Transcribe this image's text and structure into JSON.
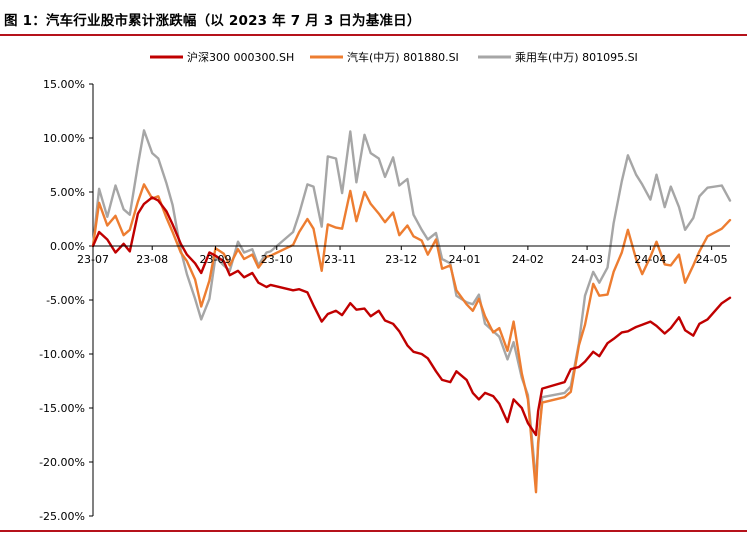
{
  "page": {
    "title": "图 1：汽车行业股市累计涨跌幅（以 2023 年 7 月 3 日为基准日）"
  },
  "colors": {
    "rule": "#b5121b",
    "axis": "#000000"
  },
  "chart_data": {
    "type": "line",
    "title": "图 1：汽车行业股市累计涨跌幅（以 2023 年 7 月 3 日为基准日）",
    "xlabel": "",
    "ylabel": "",
    "x_tick_labels": [
      "23-07",
      "23-08",
      "23-09",
      "23-10",
      "23-11",
      "23-12",
      "24-01",
      "24-02",
      "24-03",
      "24-04",
      "24-05"
    ],
    "y_tick_labels": [
      "15.00%",
      "10.00%",
      "5.00%",
      "0.00%",
      "-5.00%",
      "-10.00%",
      "-15.00%",
      "-20.00%",
      "-25.00%"
    ],
    "y_ticks": [
      15,
      10,
      5,
      0,
      -5,
      -10,
      -15,
      -20,
      -25
    ],
    "ylim": [
      -25,
      15
    ],
    "xlim": [
      "2023-07-03",
      "2024-05-10"
    ],
    "grid": false,
    "legend_position": "top",
    "series": [
      {
        "name": "沪深300 000300.SH",
        "color": "#c00000",
        "points": [
          [
            "2023-07-03",
            0.0
          ],
          [
            "2023-07-06",
            1.3
          ],
          [
            "2023-07-10",
            0.6
          ],
          [
            "2023-07-14",
            -0.6
          ],
          [
            "2023-07-18",
            0.2
          ],
          [
            "2023-07-21",
            -0.5
          ],
          [
            "2023-07-25",
            3.0
          ],
          [
            "2023-07-28",
            3.9
          ],
          [
            "2023-08-01",
            4.5
          ],
          [
            "2023-08-04",
            4.2
          ],
          [
            "2023-08-08",
            3.2
          ],
          [
            "2023-08-11",
            2.0
          ],
          [
            "2023-08-15",
            0.2
          ],
          [
            "2023-08-18",
            -0.8
          ],
          [
            "2023-08-22",
            -1.6
          ],
          [
            "2023-08-25",
            -2.5
          ],
          [
            "2023-08-29",
            -0.6
          ],
          [
            "2023-09-01",
            -0.9
          ],
          [
            "2023-09-05",
            -1.4
          ],
          [
            "2023-09-08",
            -2.7
          ],
          [
            "2023-09-12",
            -2.3
          ],
          [
            "2023-09-15",
            -2.9
          ],
          [
            "2023-09-19",
            -2.5
          ],
          [
            "2023-09-22",
            -3.4
          ],
          [
            "2023-09-26",
            -3.8
          ],
          [
            "2023-09-28",
            -3.6
          ],
          [
            "2023-10-09",
            -4.1
          ],
          [
            "2023-10-12",
            -4.0
          ],
          [
            "2023-10-16",
            -4.3
          ],
          [
            "2023-10-19",
            -5.5
          ],
          [
            "2023-10-23",
            -7.0
          ],
          [
            "2023-10-26",
            -6.3
          ],
          [
            "2023-10-30",
            -6.0
          ],
          [
            "2023-11-02",
            -6.4
          ],
          [
            "2023-11-06",
            -5.3
          ],
          [
            "2023-11-09",
            -5.9
          ],
          [
            "2023-11-13",
            -5.8
          ],
          [
            "2023-11-16",
            -6.5
          ],
          [
            "2023-11-20",
            -6.0
          ],
          [
            "2023-11-23",
            -6.9
          ],
          [
            "2023-11-27",
            -7.2
          ],
          [
            "2023-11-30",
            -7.9
          ],
          [
            "2023-12-04",
            -9.2
          ],
          [
            "2023-12-07",
            -9.8
          ],
          [
            "2023-12-11",
            -10.0
          ],
          [
            "2023-12-14",
            -10.4
          ],
          [
            "2023-12-18",
            -11.6
          ],
          [
            "2023-12-21",
            -12.4
          ],
          [
            "2023-12-25",
            -12.6
          ],
          [
            "2023-12-28",
            -11.6
          ],
          [
            "2024-01-02",
            -12.4
          ],
          [
            "2024-01-05",
            -13.6
          ],
          [
            "2024-01-08",
            -14.2
          ],
          [
            "2024-01-11",
            -13.6
          ],
          [
            "2024-01-15",
            -13.9
          ],
          [
            "2024-01-18",
            -14.6
          ],
          [
            "2024-01-22",
            -16.3
          ],
          [
            "2024-01-25",
            -14.2
          ],
          [
            "2024-01-29",
            -15.0
          ],
          [
            "2024-02-01",
            -16.4
          ],
          [
            "2024-02-05",
            -17.5
          ],
          [
            "2024-02-06",
            -15.3
          ],
          [
            "2024-02-08",
            -13.2
          ],
          [
            "2024-02-19",
            -12.6
          ],
          [
            "2024-02-22",
            -11.4
          ],
          [
            "2024-02-26",
            -11.2
          ],
          [
            "2024-02-29",
            -10.7
          ],
          [
            "2024-03-04",
            -9.8
          ],
          [
            "2024-03-07",
            -10.2
          ],
          [
            "2024-03-11",
            -9.0
          ],
          [
            "2024-03-14",
            -8.6
          ],
          [
            "2024-03-18",
            -8.0
          ],
          [
            "2024-03-21",
            -7.9
          ],
          [
            "2024-03-25",
            -7.5
          ],
          [
            "2024-03-28",
            -7.3
          ],
          [
            "2024-04-01",
            -7.0
          ],
          [
            "2024-04-04",
            -7.4
          ],
          [
            "2024-04-08",
            -8.1
          ],
          [
            "2024-04-11",
            -7.6
          ],
          [
            "2024-04-15",
            -6.6
          ],
          [
            "2024-04-18",
            -7.8
          ],
          [
            "2024-04-22",
            -8.3
          ],
          [
            "2024-04-25",
            -7.2
          ],
          [
            "2024-04-29",
            -6.8
          ],
          [
            "2024-05-06",
            -5.3
          ],
          [
            "2024-05-10",
            -4.8
          ]
        ]
      },
      {
        "name": "汽车(中万) 801880.SI",
        "color": "#ed7d31",
        "points": [
          [
            "2023-07-03",
            0.0
          ],
          [
            "2023-07-06",
            4.0
          ],
          [
            "2023-07-10",
            1.9
          ],
          [
            "2023-07-14",
            2.8
          ],
          [
            "2023-07-18",
            1.0
          ],
          [
            "2023-07-21",
            1.5
          ],
          [
            "2023-07-25",
            4.1
          ],
          [
            "2023-07-28",
            5.7
          ],
          [
            "2023-08-01",
            4.4
          ],
          [
            "2023-08-04",
            4.6
          ],
          [
            "2023-08-08",
            2.6
          ],
          [
            "2023-08-11",
            1.3
          ],
          [
            "2023-08-15",
            -0.6
          ],
          [
            "2023-08-18",
            -1.4
          ],
          [
            "2023-08-22",
            -3.1
          ],
          [
            "2023-08-25",
            -5.6
          ],
          [
            "2023-08-29",
            -3.2
          ],
          [
            "2023-09-01",
            -0.2
          ],
          [
            "2023-09-05",
            -0.7
          ],
          [
            "2023-09-08",
            -1.8
          ],
          [
            "2023-09-12",
            -0.3
          ],
          [
            "2023-09-15",
            -1.2
          ],
          [
            "2023-09-19",
            -0.8
          ],
          [
            "2023-09-22",
            -2.0
          ],
          [
            "2023-09-26",
            -1.0
          ],
          [
            "2023-09-28",
            -0.9
          ],
          [
            "2023-10-09",
            0.1
          ],
          [
            "2023-10-12",
            1.3
          ],
          [
            "2023-10-16",
            2.5
          ],
          [
            "2023-10-19",
            1.6
          ],
          [
            "2023-10-23",
            -2.3
          ],
          [
            "2023-10-26",
            2.0
          ],
          [
            "2023-10-30",
            1.7
          ],
          [
            "2023-11-02",
            1.6
          ],
          [
            "2023-11-06",
            5.1
          ],
          [
            "2023-11-09",
            2.3
          ],
          [
            "2023-11-13",
            5.0
          ],
          [
            "2023-11-16",
            3.9
          ],
          [
            "2023-11-20",
            3.0
          ],
          [
            "2023-11-23",
            2.2
          ],
          [
            "2023-11-27",
            3.1
          ],
          [
            "2023-11-30",
            1.0
          ],
          [
            "2023-12-04",
            1.9
          ],
          [
            "2023-12-07",
            0.9
          ],
          [
            "2023-12-11",
            0.5
          ],
          [
            "2023-12-14",
            -0.8
          ],
          [
            "2023-12-18",
            0.6
          ],
          [
            "2023-12-21",
            -2.1
          ],
          [
            "2023-12-25",
            -1.8
          ],
          [
            "2023-12-28",
            -4.1
          ],
          [
            "2024-01-02",
            -5.4
          ],
          [
            "2024-01-05",
            -6.0
          ],
          [
            "2024-01-08",
            -4.9
          ],
          [
            "2024-01-11",
            -6.5
          ],
          [
            "2024-01-15",
            -8.0
          ],
          [
            "2024-01-18",
            -7.6
          ],
          [
            "2024-01-22",
            -9.7
          ],
          [
            "2024-01-25",
            -7.0
          ],
          [
            "2024-01-29",
            -11.8
          ],
          [
            "2024-02-01",
            -14.2
          ],
          [
            "2024-02-05",
            -22.8
          ],
          [
            "2024-02-06",
            -18.2
          ],
          [
            "2024-02-08",
            -14.5
          ],
          [
            "2024-02-19",
            -14.0
          ],
          [
            "2024-02-22",
            -13.5
          ],
          [
            "2024-02-26",
            -9.2
          ],
          [
            "2024-02-29",
            -7.3
          ],
          [
            "2024-03-04",
            -3.5
          ],
          [
            "2024-03-07",
            -4.6
          ],
          [
            "2024-03-11",
            -4.5
          ],
          [
            "2024-03-14",
            -2.4
          ],
          [
            "2024-03-18",
            -0.6
          ],
          [
            "2024-03-21",
            1.5
          ],
          [
            "2024-03-25",
            -1.2
          ],
          [
            "2024-03-28",
            -2.6
          ],
          [
            "2024-04-01",
            -1.0
          ],
          [
            "2024-04-04",
            0.4
          ],
          [
            "2024-04-08",
            -1.7
          ],
          [
            "2024-04-11",
            -1.8
          ],
          [
            "2024-04-15",
            -0.8
          ],
          [
            "2024-04-18",
            -3.4
          ],
          [
            "2024-04-22",
            -1.8
          ],
          [
            "2024-04-25",
            -0.5
          ],
          [
            "2024-04-29",
            0.9
          ],
          [
            "2024-05-06",
            1.6
          ],
          [
            "2024-05-10",
            2.4
          ]
        ]
      },
      {
        "name": "乘用车(中万) 801095.SI",
        "color": "#a6a6a6",
        "points": [
          [
            "2023-07-03",
            0.0
          ],
          [
            "2023-07-06",
            5.3
          ],
          [
            "2023-07-10",
            2.7
          ],
          [
            "2023-07-14",
            5.6
          ],
          [
            "2023-07-18",
            3.4
          ],
          [
            "2023-07-21",
            2.9
          ],
          [
            "2023-07-25",
            7.5
          ],
          [
            "2023-07-28",
            10.7
          ],
          [
            "2023-08-01",
            8.6
          ],
          [
            "2023-08-04",
            8.1
          ],
          [
            "2023-08-08",
            5.8
          ],
          [
            "2023-08-11",
            3.8
          ],
          [
            "2023-08-15",
            -0.4
          ],
          [
            "2023-08-18",
            -2.6
          ],
          [
            "2023-08-22",
            -4.9
          ],
          [
            "2023-08-25",
            -6.8
          ],
          [
            "2023-08-29",
            -4.9
          ],
          [
            "2023-09-01",
            -1.0
          ],
          [
            "2023-09-05",
            -1.8
          ],
          [
            "2023-09-08",
            -2.3
          ],
          [
            "2023-09-12",
            0.4
          ],
          [
            "2023-09-15",
            -0.6
          ],
          [
            "2023-09-19",
            -0.3
          ],
          [
            "2023-09-22",
            -1.8
          ],
          [
            "2023-09-26",
            -0.6
          ],
          [
            "2023-09-28",
            -0.5
          ],
          [
            "2023-10-09",
            1.3
          ],
          [
            "2023-10-12",
            3.0
          ],
          [
            "2023-10-16",
            5.7
          ],
          [
            "2023-10-19",
            5.5
          ],
          [
            "2023-10-23",
            1.8
          ],
          [
            "2023-10-26",
            8.3
          ],
          [
            "2023-10-30",
            8.1
          ],
          [
            "2023-11-02",
            4.9
          ],
          [
            "2023-11-06",
            10.6
          ],
          [
            "2023-11-09",
            5.9
          ],
          [
            "2023-11-13",
            10.3
          ],
          [
            "2023-11-16",
            8.6
          ],
          [
            "2023-11-20",
            8.1
          ],
          [
            "2023-11-23",
            6.4
          ],
          [
            "2023-11-27",
            8.2
          ],
          [
            "2023-11-30",
            5.6
          ],
          [
            "2023-12-04",
            6.2
          ],
          [
            "2023-12-07",
            2.9
          ],
          [
            "2023-12-11",
            1.5
          ],
          [
            "2023-12-14",
            0.6
          ],
          [
            "2023-12-18",
            1.2
          ],
          [
            "2023-12-21",
            -1.2
          ],
          [
            "2023-12-25",
            -1.6
          ],
          [
            "2023-12-28",
            -4.6
          ],
          [
            "2024-01-02",
            -5.2
          ],
          [
            "2024-01-05",
            -5.4
          ],
          [
            "2024-01-08",
            -4.5
          ],
          [
            "2024-01-11",
            -7.2
          ],
          [
            "2024-01-15",
            -7.9
          ],
          [
            "2024-01-18",
            -8.4
          ],
          [
            "2024-01-22",
            -10.5
          ],
          [
            "2024-01-25",
            -8.9
          ],
          [
            "2024-01-29",
            -12.2
          ],
          [
            "2024-02-01",
            -13.8
          ],
          [
            "2024-02-05",
            -21.8
          ],
          [
            "2024-02-06",
            -18.6
          ],
          [
            "2024-02-08",
            -14.0
          ],
          [
            "2024-02-19",
            -13.6
          ],
          [
            "2024-02-22",
            -13.0
          ],
          [
            "2024-02-26",
            -9.0
          ],
          [
            "2024-02-29",
            -4.6
          ],
          [
            "2024-03-04",
            -2.4
          ],
          [
            "2024-03-07",
            -3.4
          ],
          [
            "2024-03-11",
            -2.0
          ],
          [
            "2024-03-14",
            2.1
          ],
          [
            "2024-03-18",
            6.0
          ],
          [
            "2024-03-21",
            8.4
          ],
          [
            "2024-03-25",
            6.6
          ],
          [
            "2024-03-28",
            5.7
          ],
          [
            "2024-04-01",
            4.3
          ],
          [
            "2024-04-04",
            6.6
          ],
          [
            "2024-04-08",
            3.6
          ],
          [
            "2024-04-11",
            5.5
          ],
          [
            "2024-04-15",
            3.6
          ],
          [
            "2024-04-18",
            1.5
          ],
          [
            "2024-04-22",
            2.6
          ],
          [
            "2024-04-25",
            4.6
          ],
          [
            "2024-04-29",
            5.4
          ],
          [
            "2024-05-06",
            5.6
          ],
          [
            "2024-05-10",
            4.2
          ]
        ]
      }
    ]
  }
}
